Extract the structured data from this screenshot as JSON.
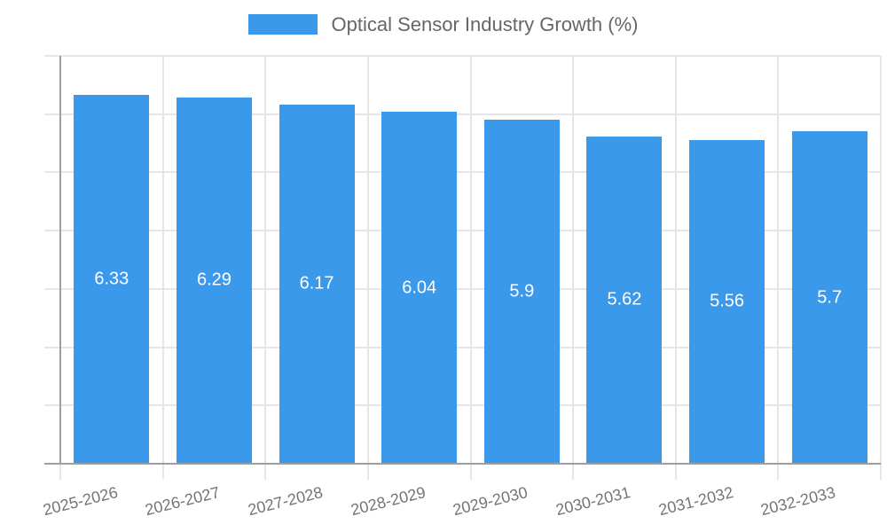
{
  "chart_data": {
    "type": "bar",
    "title": "",
    "series_name": "Optical Sensor Industry Growth (%)",
    "categories": [
      "2025-2026",
      "2026-2027",
      "2027-2028",
      "2028-2029",
      "2029-2030",
      "2030-2031",
      "2031-2032",
      "2032-2033"
    ],
    "values": [
      6.33,
      6.29,
      6.17,
      6.04,
      5.9,
      5.62,
      5.56,
      5.7
    ],
    "value_labels": [
      "6.33",
      "6.29",
      "6.17",
      "6.04",
      "5.9",
      "5.62",
      "5.56",
      "5.7"
    ],
    "xlabel": "",
    "ylabel": "",
    "ylim": [
      0,
      7
    ],
    "yticks": [
      0,
      1,
      2,
      3,
      4,
      5,
      6,
      7
    ],
    "grid": true,
    "legend_position": "top",
    "bar_labels_shown": true
  },
  "legend": {
    "label": "Optical Sensor Industry Growth (%)"
  },
  "colors": {
    "bar": "#3B99EC",
    "axis_line": "#9E9E9E",
    "grid_line": "#E6E6E6",
    "axis_text": "#757575",
    "legend_text": "#666666",
    "value_label": "#FFFFFF",
    "background": "#FFFFFF"
  }
}
